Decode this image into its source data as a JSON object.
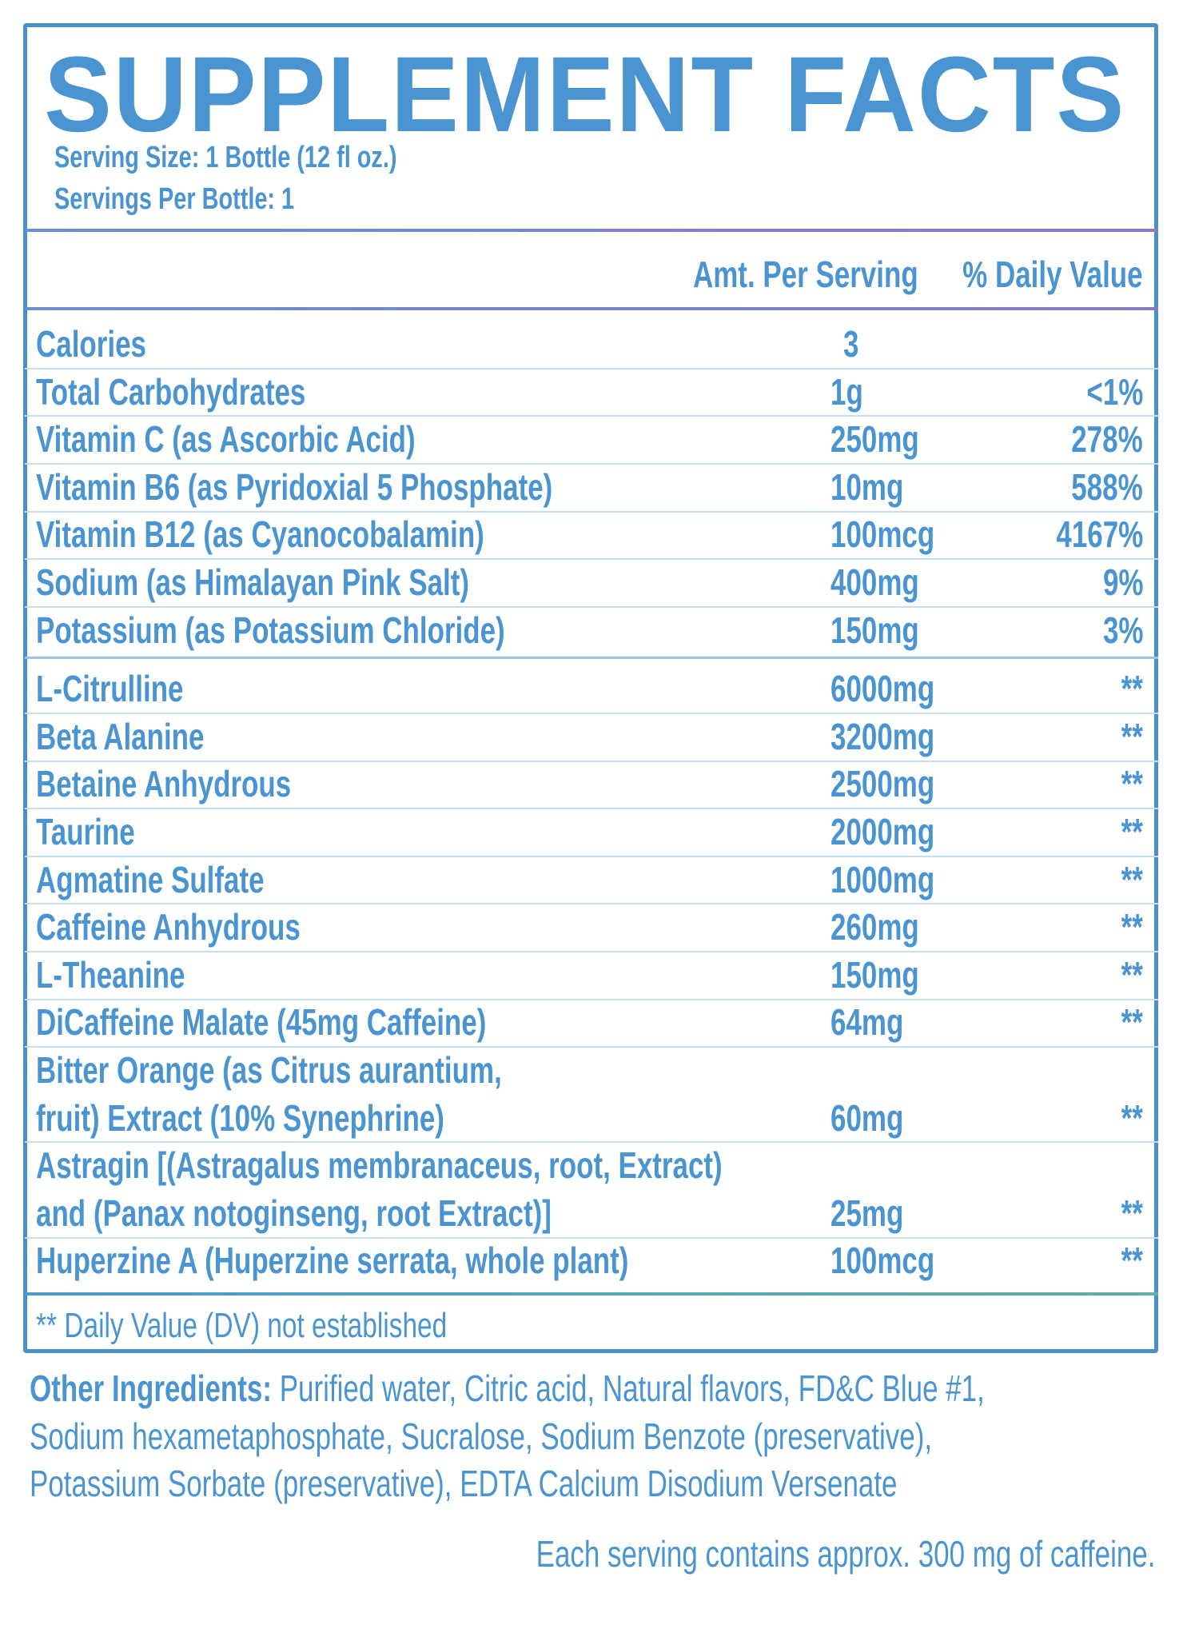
{
  "header": {
    "title": "SUPPLEMENT FACTS",
    "serving_size": "Serving Size: 1 Bottle  (12 fl oz.)",
    "servings_per": "Servings Per Bottle: 1"
  },
  "columns": {
    "amount": "Amt. Per Serving",
    "dv": "% Daily Value"
  },
  "groups": [
    {
      "rows": [
        {
          "name": [
            "Calories"
          ],
          "amount": "3"
        },
        {
          "name": [
            "Total Carbohydrates"
          ],
          "amount": "1g",
          "dv": "<1%"
        },
        {
          "name": [
            "Vitamin C (as Ascorbic Acid)"
          ],
          "amount": "250mg",
          "dv": "278%"
        },
        {
          "name": [
            "Vitamin B6 (as Pyridoxial 5 Phosphate)"
          ],
          "amount": "10mg",
          "dv": "588%"
        },
        {
          "name": [
            "Vitamin B12 (as Cyanocobalamin)"
          ],
          "amount": "100mcg",
          "dv": "4167%"
        },
        {
          "name": [
            "Sodium (as Himalayan Pink Salt)"
          ],
          "amount": "400mg",
          "dv": "9%"
        },
        {
          "name": [
            "Potassium (as Potassium Chloride)"
          ],
          "amount": "150mg",
          "dv": "3%"
        }
      ]
    },
    {
      "rows": [
        {
          "name": [
            "L-Citrulline"
          ],
          "amount": "6000mg",
          "dv": "**"
        },
        {
          "name": [
            "Beta Alanine"
          ],
          "amount": "3200mg",
          "dv": "**"
        },
        {
          "name": [
            "Betaine Anhydrous"
          ],
          "amount": "2500mg",
          "dv": "**"
        },
        {
          "name": [
            "Taurine"
          ],
          "amount": "2000mg",
          "dv": "**"
        },
        {
          "name": [
            "Agmatine Sulfate"
          ],
          "amount": "1000mg",
          "dv": "**"
        },
        {
          "name": [
            "Caffeine Anhydrous"
          ],
          "amount": "260mg",
          "dv": "**"
        },
        {
          "name": [
            "L-Theanine"
          ],
          "amount": "150mg",
          "dv": "**"
        },
        {
          "name": [
            "DiCaffeine Malate (45mg Caffeine)"
          ],
          "amount": "64mg",
          "dv": "**"
        },
        {
          "name": [
            "Bitter Orange (as Citrus aurantium,",
            "fruit) Extract (10% Synephrine)"
          ],
          "amount": "60mg",
          "dv": "**"
        },
        {
          "name": [
            "Astragin [(Astragalus membranaceus, root, Extract)",
            "and (Panax notoginseng, root Extract)]"
          ],
          "amount": "25mg",
          "dv": "**"
        },
        {
          "name": [
            "Huperzine A (Huperzine serrata, whole plant)"
          ],
          "amount": "100mcg",
          "dv": "**"
        }
      ]
    }
  ],
  "footnote": "** Daily Value (DV) not established",
  "other_ingredients": {
    "label": "Other Ingredients:",
    "lines": [
      " Purified water, Citric acid, Natural flavors, FD&C Blue #1,",
      "Sodium hexametaphosphate, Sucralose, Sodium Benzote (preservative),",
      "Potassium Sorbate (preservative), EDTA Calcium Disodium Versenate"
    ]
  },
  "caffeine_note": "Each serving contains approx. 300 mg of caffeine."
}
